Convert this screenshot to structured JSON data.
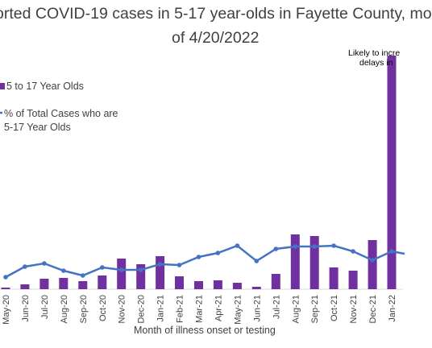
{
  "chart_data": {
    "type": "bar",
    "title_line1": "orted COVID-19 cases in 5-17 year-olds in Fayette County, mo",
    "title_line2": "of 4/20/2022",
    "xlabel": "Month of illness onset or testing",
    "categories": [
      "May-20",
      "Jun-20",
      "Jul-20",
      "Aug-20",
      "Sep-20",
      "Oct-20",
      "Nov-20",
      "Dec-20",
      "Jan-21",
      "Feb-21",
      "Mar-21",
      "Apr-21",
      "May-21",
      "Jun-21",
      "Jul-21",
      "Aug-21",
      "Sep-21",
      "Oct-21",
      "Nov-21",
      "Dec-21",
      "Jan-22"
    ],
    "series": [
      {
        "name": "5 to 17 Year Olds",
        "type": "bar",
        "color": "#7030A0",
        "values": [
          2,
          6,
          13,
          14,
          10,
          17,
          38,
          31,
          41,
          16,
          10,
          11,
          8,
          3,
          19,
          68,
          66,
          27,
          23,
          61,
          290
        ]
      },
      {
        "name": "% of Total Cases who are 5-17 Year Olds",
        "name_line1": "% of Total Cases who are",
        "name_line2": "5-17 Year Olds",
        "type": "line",
        "color": "#4472C4",
        "values": [
          15,
          28,
          32,
          23,
          17,
          27,
          24,
          24,
          31,
          30,
          40,
          45,
          54,
          35,
          50,
          53,
          53,
          54,
          47,
          36,
          47
        ]
      }
    ],
    "bar_ylim": [
      0,
      300
    ],
    "line_ylim": [
      0,
      300
    ],
    "annotation_line1": "Likely to incre",
    "annotation_line2": "delays in",
    "legend_position": "left",
    "grid": false
  }
}
